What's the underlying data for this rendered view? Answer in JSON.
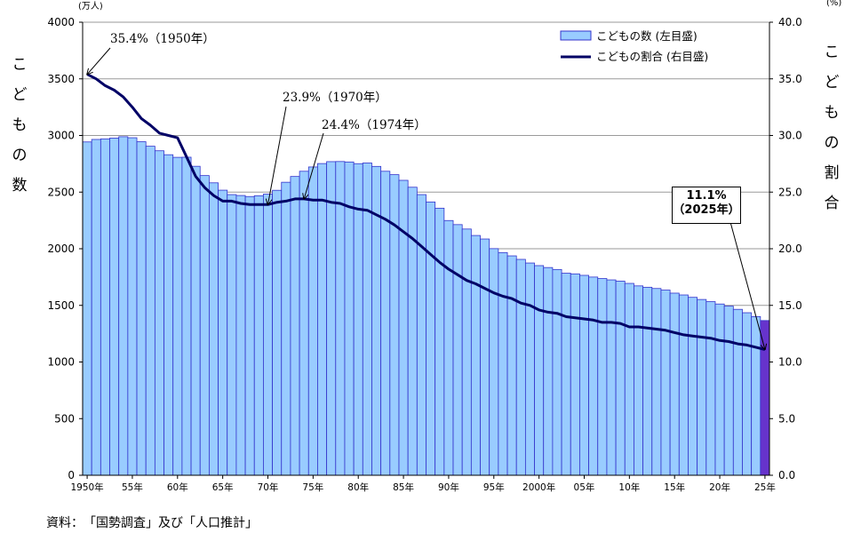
{
  "chart_data": {
    "type": "bar",
    "title": "",
    "left_unit": "(万人)",
    "right_unit": "(%)",
    "left_axis_label": "こどもの数",
    "right_axis_label": "こどもの割合",
    "ylim_left": [
      0,
      4000
    ],
    "ylim_right": [
      0,
      40
    ],
    "left_ticks": [
      "0",
      "500",
      "1000",
      "1500",
      "2000",
      "2500",
      "3000",
      "3500",
      "4000"
    ],
    "right_ticks": [
      "0.0",
      "5.0",
      "10.0",
      "15.0",
      "20.0",
      "25.0",
      "30.0",
      "35.0",
      "40.0"
    ],
    "x_tick_labels": [
      {
        "year": 1950,
        "label": "1950年"
      },
      {
        "year": 1955,
        "label": "55年"
      },
      {
        "year": 1960,
        "label": "60年"
      },
      {
        "year": 1965,
        "label": "65年"
      },
      {
        "year": 1970,
        "label": "70年"
      },
      {
        "year": 1975,
        "label": "75年"
      },
      {
        "year": 1980,
        "label": "80年"
      },
      {
        "year": 1985,
        "label": "85年"
      },
      {
        "year": 1990,
        "label": "90年"
      },
      {
        "year": 1995,
        "label": "95年"
      },
      {
        "year": 2000,
        "label": "2000年"
      },
      {
        "year": 2005,
        "label": "05年"
      },
      {
        "year": 2010,
        "label": "10年"
      },
      {
        "year": 2015,
        "label": "15年"
      },
      {
        "year": 2020,
        "label": "20年"
      },
      {
        "year": 2025,
        "label": "25年"
      }
    ],
    "years": [
      1950,
      1951,
      1952,
      1953,
      1954,
      1955,
      1956,
      1957,
      1958,
      1959,
      1960,
      1961,
      1962,
      1963,
      1964,
      1965,
      1966,
      1967,
      1968,
      1969,
      1970,
      1971,
      1972,
      1973,
      1974,
      1975,
      1976,
      1977,
      1978,
      1979,
      1980,
      1981,
      1982,
      1983,
      1984,
      1985,
      1986,
      1987,
      1988,
      1989,
      1990,
      1991,
      1992,
      1993,
      1994,
      1995,
      1996,
      1997,
      1998,
      1999,
      2000,
      2001,
      2002,
      2003,
      2004,
      2005,
      2006,
      2007,
      2008,
      2009,
      2010,
      2011,
      2012,
      2013,
      2014,
      2015,
      2016,
      2017,
      2018,
      2019,
      2020,
      2021,
      2022,
      2023,
      2024,
      2025
    ],
    "series": [
      {
        "name": "こどもの数（左目盛）",
        "axis": "left",
        "kind": "bar",
        "values": [
          2943,
          2965,
          2970,
          2977,
          2989,
          2980,
          2945,
          2905,
          2865,
          2830,
          2807,
          2808,
          2728,
          2646,
          2582,
          2517,
          2478,
          2470,
          2461,
          2468,
          2482,
          2516,
          2587,
          2638,
          2684,
          2722,
          2752,
          2769,
          2770,
          2766,
          2751,
          2757,
          2727,
          2684,
          2654,
          2604,
          2543,
          2478,
          2413,
          2358,
          2249,
          2213,
          2174,
          2117,
          2086,
          2001,
          1966,
          1937,
          1906,
          1874,
          1851,
          1834,
          1817,
          1784,
          1778,
          1765,
          1750,
          1737,
          1725,
          1714,
          1694,
          1672,
          1660,
          1649,
          1635,
          1608,
          1592,
          1571,
          1552,
          1533,
          1512,
          1493,
          1465,
          1435,
          1401,
          1366
        ]
      },
      {
        "name": "こどもの割合（右目盛）",
        "axis": "right",
        "kind": "line",
        "values": [
          35.4,
          35.0,
          34.4,
          34.0,
          33.4,
          32.5,
          31.5,
          30.9,
          30.2,
          30.0,
          29.8,
          28.1,
          26.4,
          25.4,
          24.7,
          24.2,
          24.2,
          24.0,
          23.9,
          23.9,
          23.9,
          24.1,
          24.2,
          24.4,
          24.4,
          24.3,
          24.3,
          24.1,
          24.0,
          23.7,
          23.5,
          23.4,
          23.0,
          22.6,
          22.1,
          21.5,
          20.9,
          20.2,
          19.5,
          18.8,
          18.2,
          17.7,
          17.2,
          16.9,
          16.5,
          16.1,
          15.8,
          15.6,
          15.2,
          15.0,
          14.6,
          14.4,
          14.3,
          14.0,
          13.9,
          13.8,
          13.7,
          13.5,
          13.5,
          13.4,
          13.1,
          13.1,
          13.0,
          12.9,
          12.8,
          12.6,
          12.4,
          12.3,
          12.2,
          12.1,
          11.9,
          11.8,
          11.6,
          11.5,
          11.3,
          11.1
        ]
      }
    ],
    "highlight_year": 2025,
    "legend": {
      "placement": "top-right",
      "bar_label": "こどもの数 (左目盛)",
      "line_label": "こどもの割合 (右目盛)"
    },
    "annotations": [
      {
        "text": "35.4%（1950年）",
        "year": 1950,
        "value": 35.4
      },
      {
        "text": "23.9%（1970年）",
        "year": 1970,
        "value": 23.9
      },
      {
        "text": "24.4%（1974年）",
        "year": 1974,
        "value": 24.4
      },
      {
        "text": "11.1%\n（2025年）",
        "line1": "11.1%",
        "line2": "（2025年）",
        "year": 2025,
        "value": 11.1,
        "boxed": true
      }
    ],
    "grid": true,
    "colors": {
      "bar": "#99CCFF",
      "bar_edge": "#3333CC",
      "bar_highlight": "#6633CC",
      "line": "#000066"
    }
  },
  "footer": {
    "text": "資料：　「国勢調査」及び「人口推計」"
  }
}
